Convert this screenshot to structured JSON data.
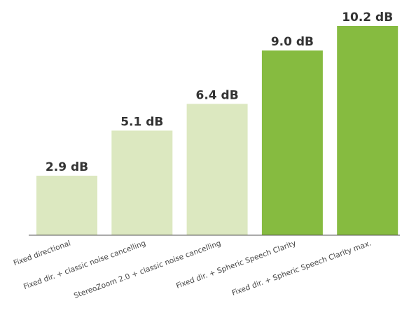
{
  "chart_data": {
    "type": "bar",
    "categories": [
      "Fixed directional",
      "Fixed dir. + classic noise cancelling",
      "StereoZoom 2.0 + classic noise cancelling",
      "Fixed dir. + Spheric Speech Clarity",
      "Fixed dir. + Spheric Speech Clarity max."
    ],
    "values": [
      2.9,
      5.1,
      6.4,
      9.0,
      10.2
    ],
    "value_labels": [
      "2.9 dB",
      "5.1 dB",
      "6.4 dB",
      "9.0 dB",
      "10.2 dB"
    ],
    "bar_colors": [
      "#dce8c0",
      "#dce8c0",
      "#dce8c0",
      "#86bb40",
      "#86bb40"
    ],
    "ylim": [
      0,
      10.2
    ],
    "grid": false,
    "title": "",
    "xlabel": "",
    "ylabel": ""
  },
  "colors": {
    "axis": "#555555",
    "label_text": "#333333"
  }
}
